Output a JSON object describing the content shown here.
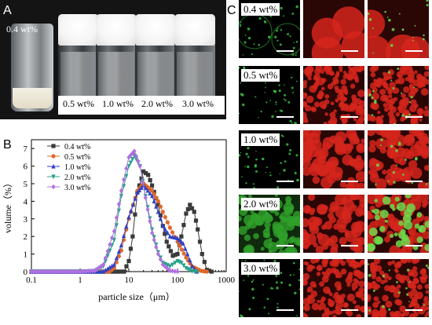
{
  "panel_letters": {
    "a": "A",
    "b": "B",
    "c": "C"
  },
  "panel_a": {
    "vial_labels": [
      "0.4 wt%",
      "0.5 wt%",
      "1.0 wt%",
      "2.0 wt%",
      "3.0 wt%"
    ]
  },
  "chart_data": {
    "type": "line",
    "xlabel": "particle size（μm）",
    "ylabel": "volume（%）",
    "x_scale": "log",
    "xlim": [
      0.1,
      1000
    ],
    "ylim": [
      0,
      7.5
    ],
    "x_ticks": [
      "0.1",
      "1",
      "10",
      "100",
      "1000"
    ],
    "y_ticks": [
      "0",
      "1",
      "2",
      "3",
      "4",
      "5",
      "6",
      "7"
    ],
    "legend_position": "top-right",
    "series": [
      {
        "name": "0.4 wt%",
        "color": "#3a3a3a",
        "marker": "square",
        "x": [
          0.1,
          1,
          5,
          8,
          10,
          12,
          15,
          20,
          25,
          30,
          40,
          50,
          60,
          80,
          100,
          120,
          150,
          180,
          220,
          260,
          320,
          400,
          500
        ],
        "y": [
          0,
          0,
          0,
          0,
          0.6,
          2.0,
          4.5,
          5.7,
          5.5,
          4.9,
          3.8,
          2.6,
          1.7,
          0.9,
          1.0,
          2.0,
          3.3,
          3.8,
          3.4,
          2.4,
          1.0,
          0.1,
          0
        ]
      },
      {
        "name": "0.5 wt%",
        "color": "#e0682a",
        "marker": "circle",
        "x": [
          0.1,
          1,
          4,
          5,
          7,
          10,
          15,
          20,
          30,
          40,
          50,
          70,
          100,
          150,
          200,
          300,
          400
        ],
        "y": [
          0,
          0,
          0,
          0.2,
          1.2,
          3.0,
          4.6,
          5.0,
          4.6,
          4.0,
          3.4,
          2.5,
          1.7,
          0.8,
          0.3,
          0.05,
          0
        ]
      },
      {
        "name": "1.0 wt%",
        "color": "#2f40c8",
        "marker": "triangle-up",
        "x": [
          0.1,
          1,
          3,
          5,
          7,
          10,
          15,
          20,
          30,
          40,
          50,
          70,
          100,
          130,
          160,
          200,
          250
        ],
        "y": [
          0,
          0,
          0,
          0.4,
          1.5,
          3.1,
          4.5,
          4.9,
          4.3,
          3.4,
          2.6,
          2.0,
          1.9,
          1.6,
          1.0,
          0.3,
          0
        ]
      },
      {
        "name": "2.0 wt%",
        "color": "#28a08a",
        "marker": "triangle-down",
        "x": [
          0.1,
          1,
          2,
          3,
          5,
          7,
          10,
          13,
          17,
          22,
          30,
          40,
          50,
          70,
          100,
          120,
          150,
          200,
          250
        ],
        "y": [
          0,
          0,
          0.03,
          0.3,
          1.8,
          4.3,
          6.0,
          6.6,
          6.0,
          4.3,
          2.4,
          1.1,
          0.5,
          0.3,
          0.6,
          0.5,
          0.2,
          0.02,
          0
        ]
      },
      {
        "name": "3.0 wt%",
        "color": "#b070e0",
        "marker": "diamond",
        "x": [
          0.1,
          1,
          2,
          3,
          5,
          7,
          10,
          13,
          17,
          22,
          30,
          40,
          50,
          70,
          100
        ],
        "y": [
          0,
          0,
          0.05,
          0.4,
          2.3,
          4.6,
          6.5,
          6.85,
          6.0,
          4.2,
          2.2,
          1.0,
          0.4,
          0.05,
          0
        ]
      }
    ]
  },
  "panel_c": {
    "row_labels": [
      "0.4 wt%",
      "0.5 wt%",
      "1.0 wt%",
      "2.0 wt%",
      "3.0 wt%"
    ]
  }
}
